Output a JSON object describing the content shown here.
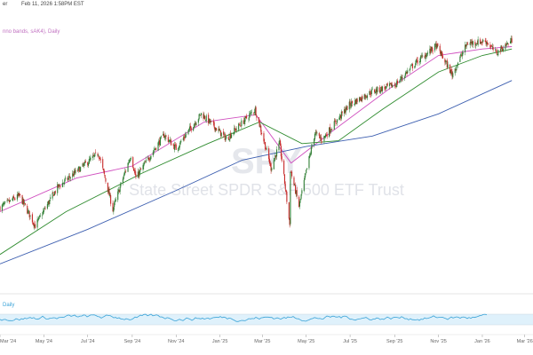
{
  "header": {
    "symbol_tail": "er",
    "timestamp": "Feb 11, 2026 1:58PM EST",
    "indicator_label": "nno bands, sAK4), Daily",
    "lower_label": "Daily"
  },
  "watermark": {
    "symbol": "SPY",
    "name": "State Street SPDR S&P 500 ETF Trust"
  },
  "colors": {
    "up": "#2e7d32",
    "down": "#c62828",
    "ma_short": "#d04fbf",
    "ma_mid": "#2e8b2e",
    "ma_long": "#3d5fb0",
    "rsi": "#3aa3d8",
    "band": "#dff1fb"
  },
  "chart_data": {
    "type": "candlestick",
    "title": "",
    "x_tick_labels": [
      "Mar '24",
      "May '24",
      "Jul '24",
      "Sep '24",
      "Nov '24",
      "Jan '25",
      "Mar '25",
      "May '25",
      "Jul '25",
      "Sep '25",
      "Nov '25",
      "Jan '26",
      "Mar '26"
    ],
    "x_range": [
      "2024-03-01",
      "2026-03-10"
    ],
    "y_range": [
      460,
      700
    ],
    "y_scale": "log",
    "y_axis_labels_visible": false,
    "price_path": [
      [
        "2024-03-01",
        512
      ],
      [
        "2024-03-28",
        523
      ],
      [
        "2024-04-19",
        495
      ],
      [
        "2024-05-20",
        531
      ],
      [
        "2024-06-18",
        548
      ],
      [
        "2024-07-16",
        565
      ],
      [
        "2024-08-05",
        510
      ],
      [
        "2024-08-30",
        563
      ],
      [
        "2024-09-06",
        540
      ],
      [
        "2024-10-15",
        584
      ],
      [
        "2024-11-01",
        570
      ],
      [
        "2024-12-06",
        607
      ],
      [
        "2025-01-10",
        580
      ],
      [
        "2025-02-19",
        612
      ],
      [
        "2025-03-13",
        550
      ],
      [
        "2025-03-25",
        575
      ],
      [
        "2025-04-08",
        496
      ],
      [
        "2025-04-09",
        548
      ],
      [
        "2025-04-21",
        513
      ],
      [
        "2025-05-13",
        586
      ],
      [
        "2025-05-23",
        579
      ],
      [
        "2025-06-30",
        617
      ],
      [
        "2025-07-31",
        632
      ],
      [
        "2025-09-02",
        640
      ],
      [
        "2025-09-30",
        666
      ],
      [
        "2025-10-29",
        687
      ],
      [
        "2025-11-20",
        652
      ],
      [
        "2025-12-11",
        690
      ],
      [
        "2026-01-06",
        693
      ],
      [
        "2026-01-20",
        678
      ],
      [
        "2026-02-11",
        694
      ]
    ],
    "series": [
      {
        "type": "line",
        "points": [
          [
            "2024-03-01",
            508
          ],
          [
            "2024-06-15",
            540
          ],
          [
            "2024-09-01",
            552
          ],
          [
            "2024-12-10",
            598
          ],
          [
            "2025-02-20",
            606
          ],
          [
            "2025-04-10",
            555
          ],
          [
            "2025-06-01",
            585
          ],
          [
            "2025-09-01",
            640
          ],
          [
            "2025-11-01",
            675
          ],
          [
            "2026-01-01",
            683
          ],
          [
            "2026-02-11",
            686
          ]
        ]
      },
      {
        "type": "line",
        "points": [
          [
            "2024-03-01",
            470
          ],
          [
            "2024-06-01",
            508
          ],
          [
            "2024-09-15",
            545
          ],
          [
            "2024-12-15",
            575
          ],
          [
            "2025-02-25",
            598
          ],
          [
            "2025-04-25",
            575
          ],
          [
            "2025-06-15",
            578
          ],
          [
            "2025-08-15",
            612
          ],
          [
            "2025-11-01",
            655
          ],
          [
            "2026-01-01",
            675
          ],
          [
            "2026-02-11",
            683
          ]
        ]
      },
      {
        "type": "line",
        "points": [
          [
            "2024-03-01",
            462
          ],
          [
            "2024-07-01",
            492
          ],
          [
            "2024-11-01",
            528
          ],
          [
            "2025-02-01",
            558
          ],
          [
            "2025-05-01",
            572
          ],
          [
            "2025-08-01",
            583
          ],
          [
            "2025-11-01",
            607
          ],
          [
            "2026-02-11",
            645
          ]
        ]
      }
    ],
    "lower_panel": {
      "type": "line",
      "range": [
        0,
        100
      ],
      "band": [
        30,
        70
      ],
      "typical_values": [
        40,
        70
      ]
    }
  }
}
